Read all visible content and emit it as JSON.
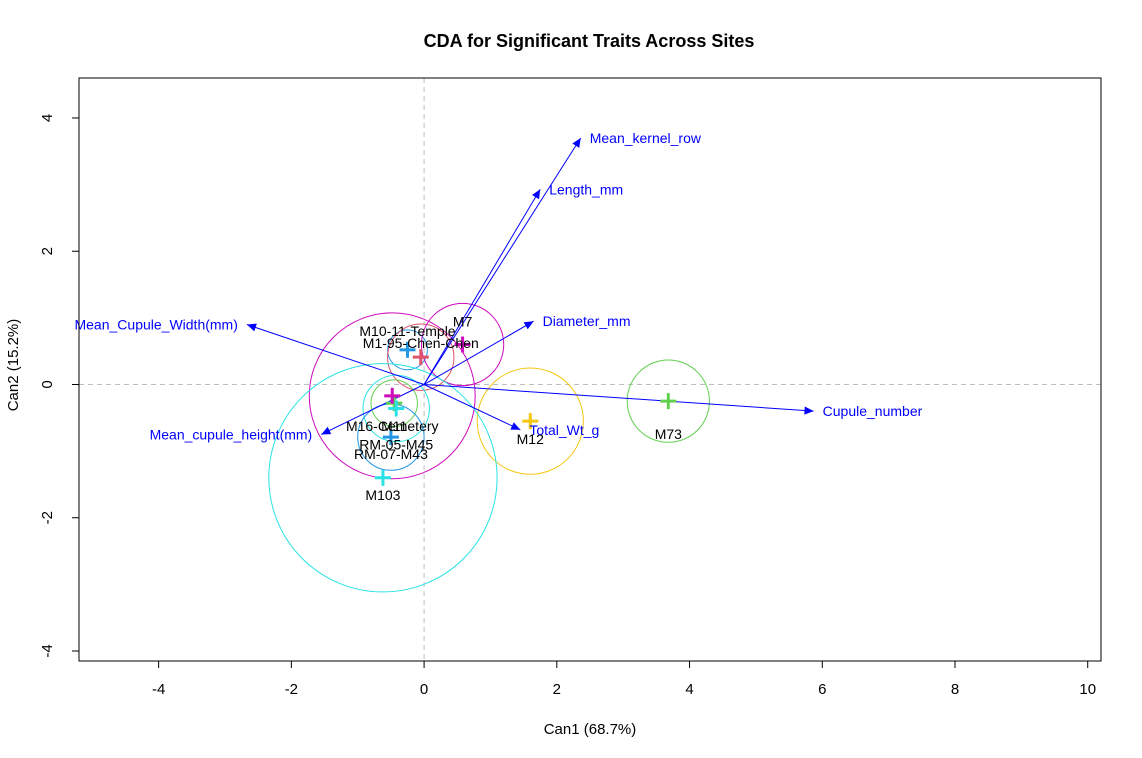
{
  "chart_data": {
    "type": "scatter",
    "title": "CDA for Significant Traits Across Sites",
    "xlabel": "Can1 (68.7%)",
    "ylabel": "Can2 (15.2%)",
    "xlim": [
      -5.2,
      10.2
    ],
    "ylim": [
      -4.15,
      4.6
    ],
    "x_ticks": [
      "-4",
      "-2",
      "0",
      "2",
      "4",
      "6",
      "8",
      "10"
    ],
    "y_ticks": [
      "-4",
      "-2",
      "0",
      "2",
      "4"
    ],
    "reference_lines": {
      "x": 0,
      "y": 0,
      "color": "#bebebe",
      "style": "dashed"
    },
    "sites": [
      {
        "label": "M10-11-Temple",
        "x": -0.25,
        "y": 0.52,
        "r": 0.3,
        "color": "#2297e6"
      },
      {
        "label": "M1-95-Chen-Chen",
        "x": -0.05,
        "y": 0.41,
        "r": 0.5,
        "color": "#df536b"
      },
      {
        "label": "M7",
        "x": 0.58,
        "y": 0.6,
        "r": 0.62,
        "color": "#cd0bbc"
      },
      {
        "label": "M73",
        "x": 3.68,
        "y": -0.25,
        "r": 0.62,
        "color": "#61d04f"
      },
      {
        "label": "M12",
        "x": 1.6,
        "y": -0.55,
        "r": 0.8,
        "color": "#f5c710"
      },
      {
        "label": "M11",
        "x": -0.45,
        "y": -0.28,
        "r": 0.35,
        "color": "#61d04f"
      },
      {
        "label": "M16-Cemetery",
        "x": -0.48,
        "y": -0.17,
        "r": 1.25,
        "color": "#cd0bbc"
      },
      {
        "label": "RM-05-M45",
        "x": -0.42,
        "y": -0.36,
        "r": 0.5,
        "color": "#28e2e5"
      },
      {
        "label": "RM-07-M43",
        "x": -0.5,
        "y": -0.79,
        "r": 0.5,
        "color": "#2297e6"
      },
      {
        "label": "M103",
        "x": -0.62,
        "y": -1.4,
        "r": 1.72,
        "color": "#28e2e5"
      }
    ],
    "vectors": [
      {
        "label": "Mean_kernel_row",
        "x": 2.36,
        "y": 3.7
      },
      {
        "label": "Length_mm",
        "x": 1.75,
        "y": 2.93
      },
      {
        "label": "Diameter_mm",
        "x": 1.65,
        "y": 0.95
      },
      {
        "label": "Mean_Cupule_Width(mm)",
        "x": -2.67,
        "y": 0.9
      },
      {
        "label": "Cupule_number",
        "x": 5.87,
        "y": -0.4
      },
      {
        "label": "Mean_cupule_height(mm)",
        "x": -1.55,
        "y": -0.75
      },
      {
        "label": "Total_Wt_g",
        "x": 1.45,
        "y": -0.68
      }
    ]
  }
}
